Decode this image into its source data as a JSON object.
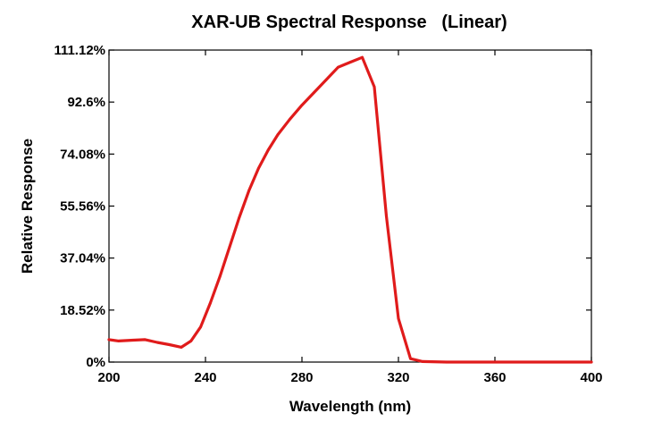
{
  "chart_data": {
    "type": "line",
    "title": "XAR-UB Spectral Response   (Linear)",
    "xlabel": "Wavelength (nm)",
    "ylabel": "Relative Response",
    "xlim": [
      200,
      400
    ],
    "ylim": [
      0,
      111.12
    ],
    "x_ticks": [
      200,
      240,
      280,
      320,
      360,
      400
    ],
    "y_ticks": [
      0,
      18.52,
      37.04,
      55.56,
      74.08,
      92.6,
      111.12
    ],
    "y_tick_labels": [
      "0%",
      "18.52%",
      "37.04%",
      "55.56%",
      "74.08%",
      "92.6%",
      "111.12%"
    ],
    "grid": false,
    "legend": "none",
    "series": [
      {
        "color": "#e01b1b",
        "x": [
          200,
          204,
          210,
          215,
          220,
          225,
          230,
          234,
          238,
          242,
          246,
          250,
          254,
          258,
          262,
          266,
          270,
          275,
          280,
          285,
          290,
          295,
          300,
          305,
          310,
          315,
          320,
          325,
          330,
          340,
          360,
          380,
          400
        ],
        "y": [
          8.0,
          7.5,
          7.8,
          8.0,
          7.0,
          6.2,
          5.3,
          7.5,
          12.5,
          21.0,
          30.5,
          41.0,
          51.5,
          61.0,
          69.0,
          75.5,
          81.0,
          86.5,
          91.5,
          96.0,
          100.5,
          105.0,
          106.8,
          108.5,
          98.0,
          52.0,
          15.5,
          1.2,
          0.2,
          0,
          0,
          0,
          0
        ]
      }
    ]
  }
}
